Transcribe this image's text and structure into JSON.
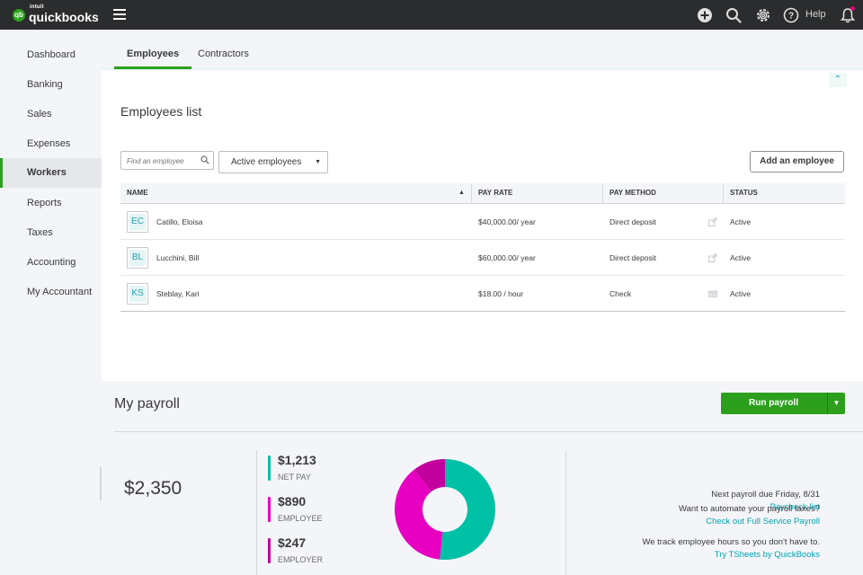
{
  "topbar": {
    "brand_small": "intuit",
    "brand_name": "quickbooks",
    "logo_badge": "qb",
    "help_label": "Help",
    "icons": [
      "plus-circle-icon",
      "search-icon",
      "gear-icon",
      "help-icon",
      "bell-icon"
    ]
  },
  "sidebar": {
    "items": [
      {
        "label": "Dashboard"
      },
      {
        "label": "Banking"
      },
      {
        "label": "Sales"
      },
      {
        "label": "Expenses"
      },
      {
        "label": "Workers",
        "active": true
      },
      {
        "label": "Reports"
      },
      {
        "label": "Taxes"
      },
      {
        "label": "Accounting"
      },
      {
        "label": "My Accountant"
      }
    ]
  },
  "tabs": [
    {
      "label": "Employees",
      "active": true
    },
    {
      "label": "Contractors"
    }
  ],
  "employees": {
    "title": "Employees list",
    "collapse_icon": "chevron-up-icon",
    "search_placeholder": "Find an employee",
    "filter_value": "Active employees",
    "add_button": "Add an employee",
    "columns": [
      "NAME",
      "PAY RATE",
      "PAY METHOD",
      "STATUS"
    ],
    "rows": [
      {
        "initials": "EC",
        "name": "Catillo, Eloisa",
        "pay_rate": "$40,000.00/ year",
        "pay_method": "Direct deposit",
        "status": "Active",
        "method_icon": "export-icon"
      },
      {
        "initials": "BL",
        "name": "Lucchini, Bill",
        "pay_rate": "$60,000.00/ year",
        "pay_method": "Direct deposit",
        "status": "Active",
        "method_icon": "export-icon"
      },
      {
        "initials": "KS",
        "name": "Steblay, Kari",
        "pay_rate": "$18.00 / hour",
        "pay_method": "Check",
        "status": "Active",
        "method_icon": "envelope-icon"
      }
    ]
  },
  "payroll": {
    "title": "My payroll",
    "run_button": "Run payroll",
    "total": "$2,350",
    "breakdown": [
      {
        "value": "$1,213",
        "label": "NET PAY",
        "color": "#00c1a6"
      },
      {
        "value": "$890",
        "label": "EMPLOYEE",
        "color": "#e800c2"
      },
      {
        "value": "$247",
        "label": "EMPLOYER",
        "color": "#c2009d"
      }
    ],
    "donut_amounts": [
      1213,
      890,
      247
    ],
    "next_due": "Next payroll due Friday, 8/31",
    "paycheck_link": "Paycheck list",
    "automate_text": "Want to automate your payroll taxes?",
    "automate_link": "Check out Full Service Payroll",
    "tsheets_text": "We track employee hours so you don't have to.",
    "tsheets_link": "Try TSheets by QuickBooks"
  }
}
